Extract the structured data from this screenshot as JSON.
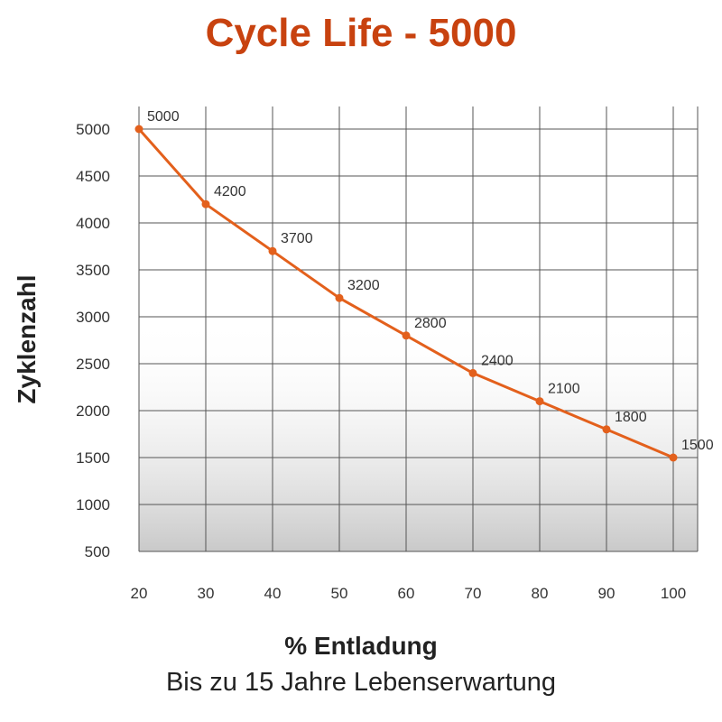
{
  "chart_data": {
    "type": "line",
    "title": "Cycle Life - 5000",
    "xlabel": "% Entladung",
    "ylabel": "Zyklenzahl",
    "subtitle": "Bis zu 15 Jahre Lebenserwartung",
    "x": [
      20,
      30,
      40,
      50,
      60,
      70,
      80,
      90,
      100
    ],
    "series": [
      {
        "values": [
          5000,
          4200,
          3700,
          3200,
          2800,
          2400,
          2100,
          1800,
          1500
        ],
        "color": "#e3601c"
      }
    ],
    "x_ticks": [
      20,
      30,
      40,
      50,
      60,
      70,
      80,
      90,
      100
    ],
    "y_ticks": [
      500,
      1000,
      1500,
      2000,
      2500,
      3000,
      3500,
      4000,
      4500,
      5000
    ],
    "xlim": [
      20,
      100
    ],
    "ylim": [
      500,
      5000
    ],
    "grid": true,
    "fill_gradient": true,
    "data_labels": true,
    "title_color": "#c8420f"
  }
}
